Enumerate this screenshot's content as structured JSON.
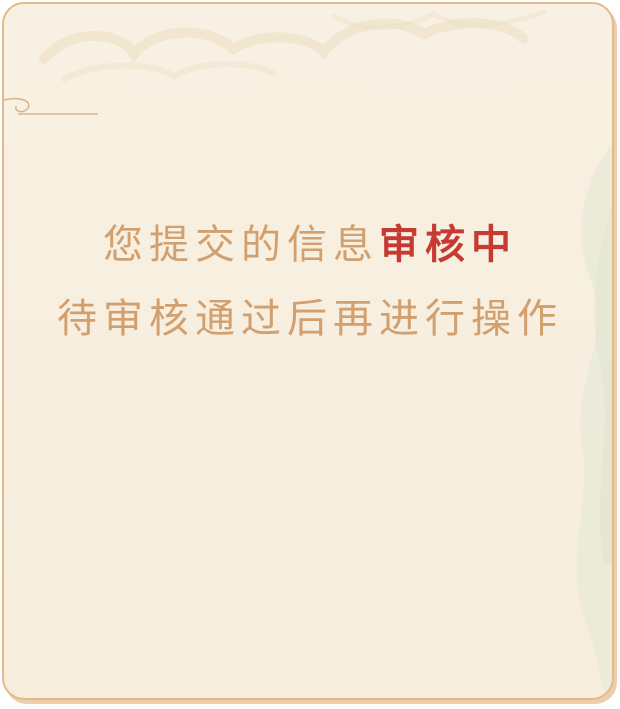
{
  "message": {
    "line1_prefix": "您提交的信息",
    "line1_highlight": "审核中",
    "line2": "待审核通过后再进行操作"
  },
  "colors": {
    "border": "#e3b98c",
    "background": "#f8f0e2",
    "text": "#d2a06e",
    "highlight": "#c63a33"
  },
  "icons": [
    "cloud-pattern-decoration",
    "wave-pattern-decoration",
    "scroll-line-decoration"
  ]
}
